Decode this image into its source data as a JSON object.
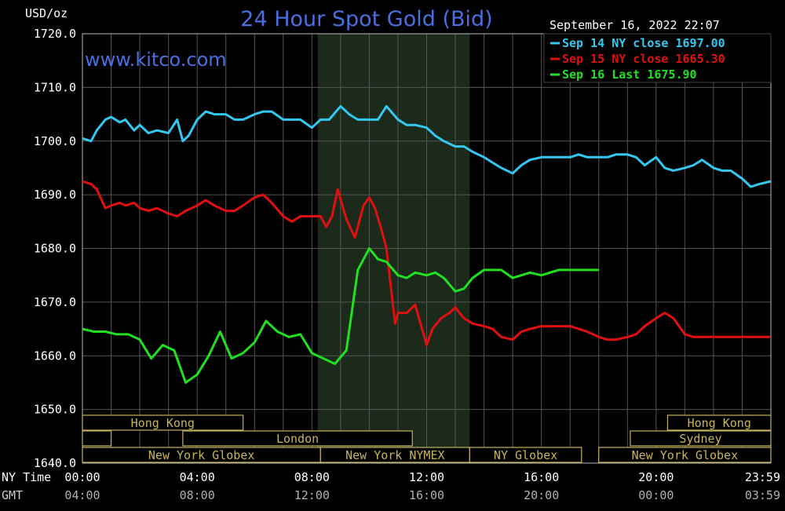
{
  "chart_data": {
    "type": "line",
    "title": "24 Hour Spot Gold (Bid)",
    "watermark": "www.kitco.com",
    "timestamp": "September 16, 2022 22:07",
    "y_unit_label": "USD/oz",
    "ylim": [
      1640,
      1720
    ],
    "y_ticks": [
      "1720.0",
      "1710.0",
      "1700.0",
      "1690.0",
      "1680.0",
      "1670.0",
      "1660.0",
      "1650.0",
      "1640.0"
    ],
    "x_axis_rows": [
      {
        "label": "NY Time",
        "ticks": [
          "00:00",
          "04:00",
          "08:00",
          "12:00",
          "16:00",
          "20:00",
          "23:59"
        ]
      },
      {
        "label": "GMT",
        "ticks": [
          "04:00",
          "08:00",
          "12:00",
          "16:00",
          "20:00",
          "00:00",
          "03:59"
        ]
      }
    ],
    "grid": true,
    "legend_position": "top-right",
    "shaded_session": {
      "from": 8.2,
      "to": 13.5
    },
    "colors": {
      "background": "#000000",
      "grid": "#555555",
      "title": "#4a6fe0",
      "watermark": "#4a6fe0",
      "session_shade": "#1b2a1b",
      "market_box": "#c8b45a"
    },
    "series": [
      {
        "name": "Sep 14 NY close 1697.00",
        "color": "#33c8f0",
        "x": [
          0,
          0.3,
          0.5,
          0.8,
          1,
          1.3,
          1.5,
          1.8,
          2,
          2.3,
          2.6,
          3,
          3.3,
          3.5,
          3.7,
          4,
          4.3,
          4.6,
          5,
          5.3,
          5.6,
          6,
          6.3,
          6.6,
          7,
          7.3,
          7.6,
          8,
          8.3,
          8.6,
          9,
          9.3,
          9.6,
          10,
          10.3,
          10.6,
          11,
          11.3,
          11.6,
          12,
          12.3,
          12.6,
          13,
          13.3,
          13.6,
          14,
          14.3,
          14.6,
          15,
          15.3,
          15.6,
          16,
          16.3,
          16.6,
          17,
          17.3,
          17.6,
          18,
          18.3,
          18.6,
          19,
          19.3,
          19.6,
          20,
          20.3,
          20.6,
          21,
          21.3,
          21.6,
          22,
          22.3,
          22.6,
          23,
          23.3,
          23.6,
          24
        ],
        "values": [
          1700.5,
          1700,
          1702,
          1704,
          1704.5,
          1703.5,
          1704,
          1702,
          1703,
          1701.5,
          1702,
          1701.5,
          1704,
          1700,
          1701,
          1704,
          1705.5,
          1705,
          1705,
          1704,
          1704,
          1705,
          1705.5,
          1705.5,
          1704,
          1704,
          1704,
          1702.5,
          1704,
          1704,
          1706.5,
          1705,
          1704,
          1704,
          1704,
          1706.5,
          1704,
          1703,
          1703,
          1702.5,
          1701,
          1700,
          1699,
          1699,
          1698,
          1697,
          1696,
          1695,
          1694,
          1695.5,
          1696.5,
          1697,
          1697,
          1697,
          1697,
          1697.5,
          1697,
          1697,
          1697,
          1697.5,
          1697.5,
          1697,
          1695.5,
          1697,
          1695,
          1694.5,
          1695,
          1695.5,
          1696.5,
          1695,
          1694.5,
          1694.5,
          1693,
          1691.5,
          1692,
          1692.5
        ]
      },
      {
        "name": "Sep 15 NY close 1665.30",
        "color": "#e01010",
        "x": [
          0,
          0.3,
          0.5,
          0.8,
          1,
          1.3,
          1.5,
          1.8,
          2,
          2.3,
          2.6,
          3,
          3.3,
          3.6,
          4,
          4.3,
          4.6,
          5,
          5.3,
          5.6,
          6,
          6.3,
          6.6,
          7,
          7.3,
          7.6,
          8,
          8.3,
          8.5,
          8.7,
          8.9,
          9.2,
          9.5,
          9.8,
          10,
          10.2,
          10.4,
          10.6,
          10.9,
          11,
          11.3,
          11.6,
          12,
          12.2,
          12.5,
          12.8,
          13,
          13.3,
          13.6,
          14,
          14.3,
          14.6,
          15,
          15.3,
          15.6,
          16,
          16.3,
          16.6,
          17,
          17.3,
          17.6,
          18,
          18.3,
          18.6,
          19,
          19.3,
          19.6,
          20,
          20.3,
          20.6,
          21,
          21.3,
          21.6,
          22,
          22.3,
          22.6,
          23,
          23.3,
          23.6,
          24
        ],
        "values": [
          1692.5,
          1692,
          1691,
          1687.5,
          1688,
          1688.5,
          1688,
          1688.5,
          1687.5,
          1687,
          1687.5,
          1686.5,
          1686,
          1687,
          1688,
          1689,
          1688,
          1687,
          1687,
          1688,
          1689.5,
          1690,
          1688.5,
          1686,
          1685,
          1686,
          1686,
          1686,
          1684,
          1686,
          1691,
          1685.5,
          1682,
          1688,
          1689.5,
          1687.5,
          1684,
          1680,
          1666,
          1668,
          1668,
          1669.5,
          1662,
          1665,
          1667,
          1668,
          1669,
          1667,
          1666,
          1665.5,
          1665,
          1663.5,
          1663,
          1664.5,
          1665,
          1665.5,
          1665.5,
          1665.5,
          1665.5,
          1665,
          1664.5,
          1663.5,
          1663,
          1663,
          1663.5,
          1664,
          1665.5,
          1667,
          1668,
          1667,
          1664,
          1663.5,
          1663.5,
          1663.5,
          1663.5,
          1663.5,
          1663.5,
          1663.5,
          1663.5,
          1663.5
        ]
      },
      {
        "name": "Sep 16 Last 1675.90",
        "color": "#20e020",
        "x": [
          0,
          0.4,
          0.8,
          1.2,
          1.6,
          2,
          2.4,
          2.8,
          3.2,
          3.6,
          4,
          4.4,
          4.8,
          5.2,
          5.6,
          6,
          6.4,
          6.8,
          7.2,
          7.6,
          8,
          8.4,
          8.8,
          9.2,
          9.6,
          10,
          10.3,
          10.6,
          11,
          11.3,
          11.6,
          12,
          12.3,
          12.6,
          13,
          13.3,
          13.6,
          14,
          14.3,
          14.6,
          15,
          15.3,
          15.6,
          16,
          16.3,
          16.6,
          17,
          17.3,
          17.6,
          18
        ],
        "values": [
          1665,
          1664.5,
          1664.5,
          1664,
          1664,
          1663,
          1659.5,
          1662,
          1661,
          1655,
          1656.5,
          1660,
          1664.5,
          1659.5,
          1660.5,
          1662.5,
          1666.5,
          1664.5,
          1663.5,
          1664,
          1660.5,
          1659.5,
          1658.5,
          1661,
          1676,
          1680,
          1678,
          1677.5,
          1675,
          1674.5,
          1675.5,
          1675,
          1675.5,
          1674.5,
          1672,
          1672.5,
          1674.5,
          1676,
          1676,
          1676,
          1674.5,
          1675,
          1675.5,
          1675,
          1675.5,
          1676,
          1676,
          1676,
          1676,
          1676
        ]
      }
    ],
    "market_sessions": [
      {
        "label": "Hong Kong",
        "row": 0,
        "from": 0,
        "to": 5.6
      },
      {
        "label": "Hong Kong",
        "row": 0,
        "from": 20.4,
        "to": 24
      },
      {
        "label": "",
        "row": 1,
        "from": 0,
        "to": 1
      },
      {
        "label": "London",
        "row": 1,
        "from": 3.5,
        "to": 11.5
      },
      {
        "label": "Sydney",
        "row": 1,
        "from": 19.1,
        "to": 24
      },
      {
        "label": "New York Globex",
        "row": 2,
        "from": 0,
        "to": 8.3
      },
      {
        "label": "New York NYMEX",
        "row": 2,
        "from": 8.3,
        "to": 13.5
      },
      {
        "label": "NY Globex",
        "row": 2,
        "from": 13.5,
        "to": 17.4
      },
      {
        "label": "New York Globex",
        "row": 2,
        "from": 18,
        "to": 24
      }
    ]
  }
}
